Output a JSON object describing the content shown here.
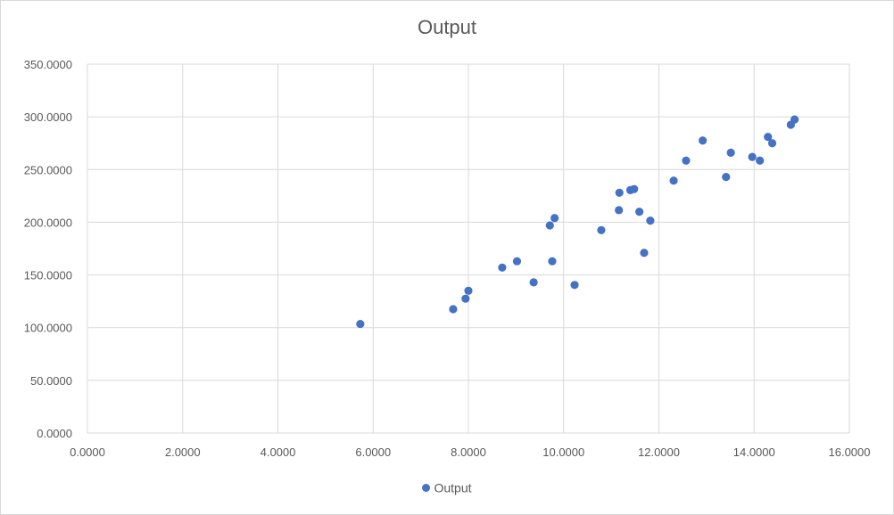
{
  "chart_data": {
    "type": "scatter",
    "title": "Output",
    "xlabel": "",
    "ylabel": "",
    "xlim": [
      0,
      16
    ],
    "ylim": [
      0,
      350
    ],
    "xticks": [
      0,
      2,
      4,
      6,
      8,
      10,
      12,
      14,
      16
    ],
    "yticks": [
      0,
      50,
      100,
      150,
      200,
      250,
      300,
      350
    ],
    "xtick_labels": [
      "0.0000",
      "2.0000",
      "4.0000",
      "6.0000",
      "8.0000",
      "10.0000",
      "12.0000",
      "14.0000",
      "16.0000"
    ],
    "ytick_labels": [
      "0.0000",
      "50.0000",
      "100.0000",
      "150.0000",
      "200.0000",
      "250.0000",
      "300.0000",
      "350.0000"
    ],
    "grid": true,
    "legend_position": "bottom",
    "series_color": "#4472c4",
    "series": [
      {
        "name": "Output",
        "points": [
          [
            5.73,
            103.5
          ],
          [
            7.68,
            117.5
          ],
          [
            7.94,
            127.5
          ],
          [
            8.0,
            135.0
          ],
          [
            8.71,
            157.0
          ],
          [
            9.02,
            163.0
          ],
          [
            9.37,
            143.0
          ],
          [
            9.71,
            197.0
          ],
          [
            9.76,
            163.0
          ],
          [
            9.81,
            204.0
          ],
          [
            10.23,
            140.5
          ],
          [
            10.79,
            192.5
          ],
          [
            11.16,
            211.5
          ],
          [
            11.17,
            228.0
          ],
          [
            11.4,
            230.5
          ],
          [
            11.48,
            231.5
          ],
          [
            11.59,
            210.0
          ],
          [
            11.69,
            171.0
          ],
          [
            11.82,
            201.5
          ],
          [
            12.31,
            239.5
          ],
          [
            12.57,
            258.5
          ],
          [
            12.92,
            277.5
          ],
          [
            13.41,
            243.0
          ],
          [
            13.51,
            266.0
          ],
          [
            13.96,
            262.0
          ],
          [
            14.12,
            258.5
          ],
          [
            14.29,
            281.0
          ],
          [
            14.38,
            275.0
          ],
          [
            14.77,
            292.5
          ],
          [
            14.85,
            297.5
          ]
        ]
      }
    ]
  }
}
